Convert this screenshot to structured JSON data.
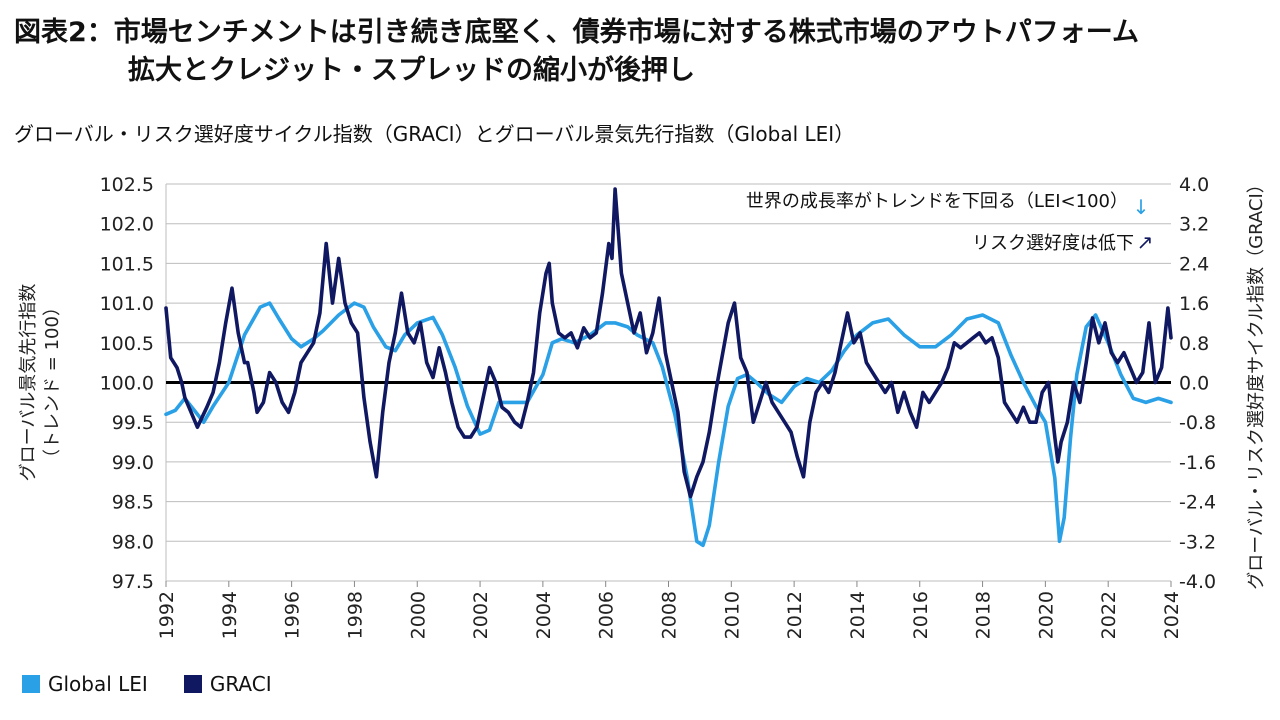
{
  "header": {
    "title_line1": "図表2：市場センチメントは引き続き底堅く、債券市場に対する株式市場のアウトパフォーム",
    "title_line2": "拡大とクレジット・スプレッドの縮小が後押し",
    "subtitle": "グローバル・リスク選好度サイクル指数（GRACI）とグローバル景気先行指数（Global LEI）"
  },
  "chart_data": {
    "type": "line",
    "x_range": [
      1992,
      2024
    ],
    "x_ticks": [
      "1992",
      "1994",
      "1996",
      "1998",
      "2000",
      "2002",
      "2004",
      "2006",
      "2008",
      "2010",
      "2012",
      "2014",
      "2016",
      "2018",
      "2020",
      "2022",
      "2024"
    ],
    "y_left": {
      "label": "グローバル景気先行指数\n（トレンド = 100）",
      "range": [
        97.5,
        102.5
      ],
      "ticks": [
        "102.5",
        "102.0",
        "101.5",
        "101.0",
        "100.5",
        "100.0",
        "99.5",
        "99.0",
        "98.5",
        "98.0",
        "97.5"
      ]
    },
    "y_right": {
      "label": "グローバル・リスク選好度サイクル指数（GRACI）",
      "range": [
        -4.0,
        4.0
      ],
      "ticks": [
        "4.0",
        "3.2",
        "2.4",
        "1.6",
        "0.8",
        "0.0",
        "-0.8",
        "-1.6",
        "-2.4",
        "-3.2",
        "-4.0"
      ]
    },
    "reference_line": 100.0,
    "grid": true,
    "annotations": [
      {
        "text": "世界の成長率がトレンドを下回る（LEI<100）",
        "arrow": "↓"
      },
      {
        "text": "リスク選好度は低下",
        "arrow": "↗"
      }
    ],
    "series": [
      {
        "name": "Global LEI",
        "axis": "left",
        "color": "#2aa0e6",
        "points": [
          [
            1992.0,
            99.6
          ],
          [
            1992.3,
            99.65
          ],
          [
            1992.6,
            99.8
          ],
          [
            1993.0,
            99.6
          ],
          [
            1993.2,
            99.5
          ],
          [
            1993.5,
            99.7
          ],
          [
            1994.0,
            100.0
          ],
          [
            1994.5,
            100.6
          ],
          [
            1995.0,
            100.95
          ],
          [
            1995.3,
            101.0
          ],
          [
            1995.6,
            100.8
          ],
          [
            1996.0,
            100.55
          ],
          [
            1996.3,
            100.45
          ],
          [
            1996.7,
            100.55
          ],
          [
            1997.0,
            100.65
          ],
          [
            1997.5,
            100.85
          ],
          [
            1998.0,
            101.0
          ],
          [
            1998.3,
            100.95
          ],
          [
            1998.6,
            100.7
          ],
          [
            1999.0,
            100.45
          ],
          [
            1999.3,
            100.4
          ],
          [
            1999.6,
            100.6
          ],
          [
            2000.0,
            100.75
          ],
          [
            2000.5,
            100.82
          ],
          [
            2000.8,
            100.6
          ],
          [
            2001.2,
            100.2
          ],
          [
            2001.6,
            99.7
          ],
          [
            2002.0,
            99.35
          ],
          [
            2002.3,
            99.4
          ],
          [
            2002.6,
            99.75
          ],
          [
            2003.0,
            99.75
          ],
          [
            2003.5,
            99.75
          ],
          [
            2004.0,
            100.1
          ],
          [
            2004.3,
            100.5
          ],
          [
            2004.6,
            100.55
          ],
          [
            2005.0,
            100.5
          ],
          [
            2005.5,
            100.6
          ],
          [
            2006.0,
            100.75
          ],
          [
            2006.3,
            100.75
          ],
          [
            2006.7,
            100.7
          ],
          [
            2007.0,
            100.6
          ],
          [
            2007.5,
            100.5
          ],
          [
            2007.8,
            100.2
          ],
          [
            2008.2,
            99.6
          ],
          [
            2008.6,
            98.8
          ],
          [
            2008.9,
            98.0
          ],
          [
            2009.1,
            97.95
          ],
          [
            2009.3,
            98.2
          ],
          [
            2009.6,
            99.0
          ],
          [
            2009.9,
            99.7
          ],
          [
            2010.2,
            100.05
          ],
          [
            2010.5,
            100.1
          ],
          [
            2010.8,
            100.0
          ],
          [
            2011.2,
            99.85
          ],
          [
            2011.6,
            99.75
          ],
          [
            2012.0,
            99.95
          ],
          [
            2012.4,
            100.05
          ],
          [
            2012.8,
            100.0
          ],
          [
            2013.2,
            100.15
          ],
          [
            2013.6,
            100.4
          ],
          [
            2014.0,
            100.6
          ],
          [
            2014.5,
            100.75
          ],
          [
            2015.0,
            100.8
          ],
          [
            2015.5,
            100.6
          ],
          [
            2016.0,
            100.45
          ],
          [
            2016.5,
            100.45
          ],
          [
            2017.0,
            100.6
          ],
          [
            2017.5,
            100.8
          ],
          [
            2018.0,
            100.85
          ],
          [
            2018.5,
            100.75
          ],
          [
            2018.9,
            100.35
          ],
          [
            2019.3,
            100.0
          ],
          [
            2019.7,
            99.7
          ],
          [
            2020.0,
            99.5
          ],
          [
            2020.3,
            98.8
          ],
          [
            2020.45,
            98.0
          ],
          [
            2020.6,
            98.3
          ],
          [
            2020.8,
            99.3
          ],
          [
            2021.0,
            100.1
          ],
          [
            2021.3,
            100.7
          ],
          [
            2021.6,
            100.85
          ],
          [
            2022.0,
            100.5
          ],
          [
            2022.4,
            100.1
          ],
          [
            2022.8,
            99.8
          ],
          [
            2023.2,
            99.75
          ],
          [
            2023.6,
            99.8
          ],
          [
            2024.0,
            99.75
          ]
        ]
      },
      {
        "name": "GRACI",
        "axis": "right",
        "color": "#101862",
        "points": [
          [
            1992.0,
            1.5
          ],
          [
            1992.15,
            0.5
          ],
          [
            1992.35,
            0.3
          ],
          [
            1992.5,
            0.0
          ],
          [
            1992.6,
            -0.3
          ],
          [
            1992.8,
            -0.6
          ],
          [
            1993.0,
            -0.9
          ],
          [
            1993.3,
            -0.5
          ],
          [
            1993.5,
            -0.2
          ],
          [
            1993.7,
            0.4
          ],
          [
            1993.9,
            1.2
          ],
          [
            1994.1,
            1.9
          ],
          [
            1994.3,
            1.0
          ],
          [
            1994.5,
            0.4
          ],
          [
            1994.6,
            0.4
          ],
          [
            1994.8,
            -0.2
          ],
          [
            1994.9,
            -0.6
          ],
          [
            1995.1,
            -0.4
          ],
          [
            1995.3,
            0.2
          ],
          [
            1995.5,
            0.0
          ],
          [
            1995.7,
            -0.4
          ],
          [
            1995.9,
            -0.6
          ],
          [
            1996.1,
            -0.2
          ],
          [
            1996.3,
            0.4
          ],
          [
            1996.5,
            0.6
          ],
          [
            1996.7,
            0.8
          ],
          [
            1996.9,
            1.4
          ],
          [
            1997.1,
            2.8
          ],
          [
            1997.3,
            1.6
          ],
          [
            1997.5,
            2.5
          ],
          [
            1997.7,
            1.6
          ],
          [
            1997.9,
            1.2
          ],
          [
            1998.1,
            1.0
          ],
          [
            1998.3,
            -0.3
          ],
          [
            1998.5,
            -1.2
          ],
          [
            1998.7,
            -1.9
          ],
          [
            1998.9,
            -0.6
          ],
          [
            1999.1,
            0.4
          ],
          [
            1999.3,
            1.0
          ],
          [
            1999.5,
            1.8
          ],
          [
            1999.7,
            1.0
          ],
          [
            1999.9,
            0.8
          ],
          [
            2000.1,
            1.2
          ],
          [
            2000.3,
            0.4
          ],
          [
            2000.5,
            0.1
          ],
          [
            2000.7,
            0.7
          ],
          [
            2000.9,
            0.2
          ],
          [
            2001.1,
            -0.4
          ],
          [
            2001.3,
            -0.9
          ],
          [
            2001.5,
            -1.1
          ],
          [
            2001.7,
            -1.1
          ],
          [
            2001.9,
            -0.9
          ],
          [
            2002.1,
            -0.3
          ],
          [
            2002.3,
            0.3
          ],
          [
            2002.5,
            0.0
          ],
          [
            2002.7,
            -0.5
          ],
          [
            2002.9,
            -0.6
          ],
          [
            2003.1,
            -0.8
          ],
          [
            2003.3,
            -0.9
          ],
          [
            2003.5,
            -0.4
          ],
          [
            2003.7,
            0.2
          ],
          [
            2003.9,
            1.4
          ],
          [
            2004.1,
            2.2
          ],
          [
            2004.2,
            2.4
          ],
          [
            2004.3,
            1.6
          ],
          [
            2004.5,
            1.0
          ],
          [
            2004.7,
            0.9
          ],
          [
            2004.9,
            1.0
          ],
          [
            2005.1,
            0.7
          ],
          [
            2005.3,
            1.1
          ],
          [
            2005.5,
            0.9
          ],
          [
            2005.7,
            1.0
          ],
          [
            2005.9,
            1.8
          ],
          [
            2006.1,
            2.8
          ],
          [
            2006.2,
            2.5
          ],
          [
            2006.3,
            3.9
          ],
          [
            2006.5,
            2.2
          ],
          [
            2006.7,
            1.6
          ],
          [
            2006.9,
            1.0
          ],
          [
            2007.1,
            1.4
          ],
          [
            2007.3,
            0.6
          ],
          [
            2007.5,
            1.0
          ],
          [
            2007.7,
            1.7
          ],
          [
            2007.9,
            0.6
          ],
          [
            2008.1,
            0.0
          ],
          [
            2008.3,
            -0.6
          ],
          [
            2008.5,
            -1.8
          ],
          [
            2008.7,
            -2.3
          ],
          [
            2008.9,
            -1.9
          ],
          [
            2009.1,
            -1.6
          ],
          [
            2009.3,
            -1.0
          ],
          [
            2009.5,
            -0.2
          ],
          [
            2009.7,
            0.5
          ],
          [
            2009.9,
            1.2
          ],
          [
            2010.1,
            1.6
          ],
          [
            2010.3,
            0.5
          ],
          [
            2010.5,
            0.2
          ],
          [
            2010.7,
            -0.8
          ],
          [
            2010.9,
            -0.4
          ],
          [
            2011.1,
            0.0
          ],
          [
            2011.3,
            -0.4
          ],
          [
            2011.5,
            -0.6
          ],
          [
            2011.7,
            -0.8
          ],
          [
            2011.9,
            -1.0
          ],
          [
            2012.1,
            -1.5
          ],
          [
            2012.3,
            -1.9
          ],
          [
            2012.5,
            -0.8
          ],
          [
            2012.7,
            -0.2
          ],
          [
            2012.9,
            0.0
          ],
          [
            2013.1,
            -0.2
          ],
          [
            2013.3,
            0.2
          ],
          [
            2013.5,
            0.8
          ],
          [
            2013.7,
            1.4
          ],
          [
            2013.9,
            0.8
          ],
          [
            2014.1,
            1.0
          ],
          [
            2014.3,
            0.4
          ],
          [
            2014.5,
            0.2
          ],
          [
            2014.7,
            0.0
          ],
          [
            2014.9,
            -0.2
          ],
          [
            2015.1,
            0.0
          ],
          [
            2015.3,
            -0.6
          ],
          [
            2015.5,
            -0.2
          ],
          [
            2015.7,
            -0.6
          ],
          [
            2015.9,
            -0.9
          ],
          [
            2016.1,
            -0.2
          ],
          [
            2016.3,
            -0.4
          ],
          [
            2016.5,
            -0.2
          ],
          [
            2016.7,
            0.0
          ],
          [
            2016.9,
            0.3
          ],
          [
            2017.1,
            0.8
          ],
          [
            2017.3,
            0.7
          ],
          [
            2017.5,
            0.8
          ],
          [
            2017.7,
            0.9
          ],
          [
            2017.9,
            1.0
          ],
          [
            2018.1,
            0.8
          ],
          [
            2018.3,
            0.9
          ],
          [
            2018.5,
            0.5
          ],
          [
            2018.7,
            -0.4
          ],
          [
            2018.9,
            -0.6
          ],
          [
            2019.1,
            -0.8
          ],
          [
            2019.3,
            -0.5
          ],
          [
            2019.5,
            -0.8
          ],
          [
            2019.7,
            -0.8
          ],
          [
            2019.9,
            -0.2
          ],
          [
            2020.1,
            0.0
          ],
          [
            2020.3,
            -1.1
          ],
          [
            2020.4,
            -1.6
          ],
          [
            2020.5,
            -1.2
          ],
          [
            2020.7,
            -0.8
          ],
          [
            2020.9,
            0.0
          ],
          [
            2021.1,
            -0.4
          ],
          [
            2021.3,
            0.4
          ],
          [
            2021.5,
            1.3
          ],
          [
            2021.7,
            0.8
          ],
          [
            2021.9,
            1.2
          ],
          [
            2022.1,
            0.6
          ],
          [
            2022.3,
            0.4
          ],
          [
            2022.5,
            0.6
          ],
          [
            2022.7,
            0.3
          ],
          [
            2022.9,
            0.0
          ],
          [
            2023.1,
            0.2
          ],
          [
            2023.3,
            1.2
          ],
          [
            2023.5,
            0.0
          ],
          [
            2023.7,
            0.3
          ],
          [
            2023.9,
            1.5
          ],
          [
            2024.0,
            0.9
          ]
        ]
      }
    ]
  },
  "legend": {
    "lei_label": "Global LEI",
    "graci_label": "GRACI",
    "lei_color": "#2aa0e6",
    "graci_color": "#101862"
  }
}
